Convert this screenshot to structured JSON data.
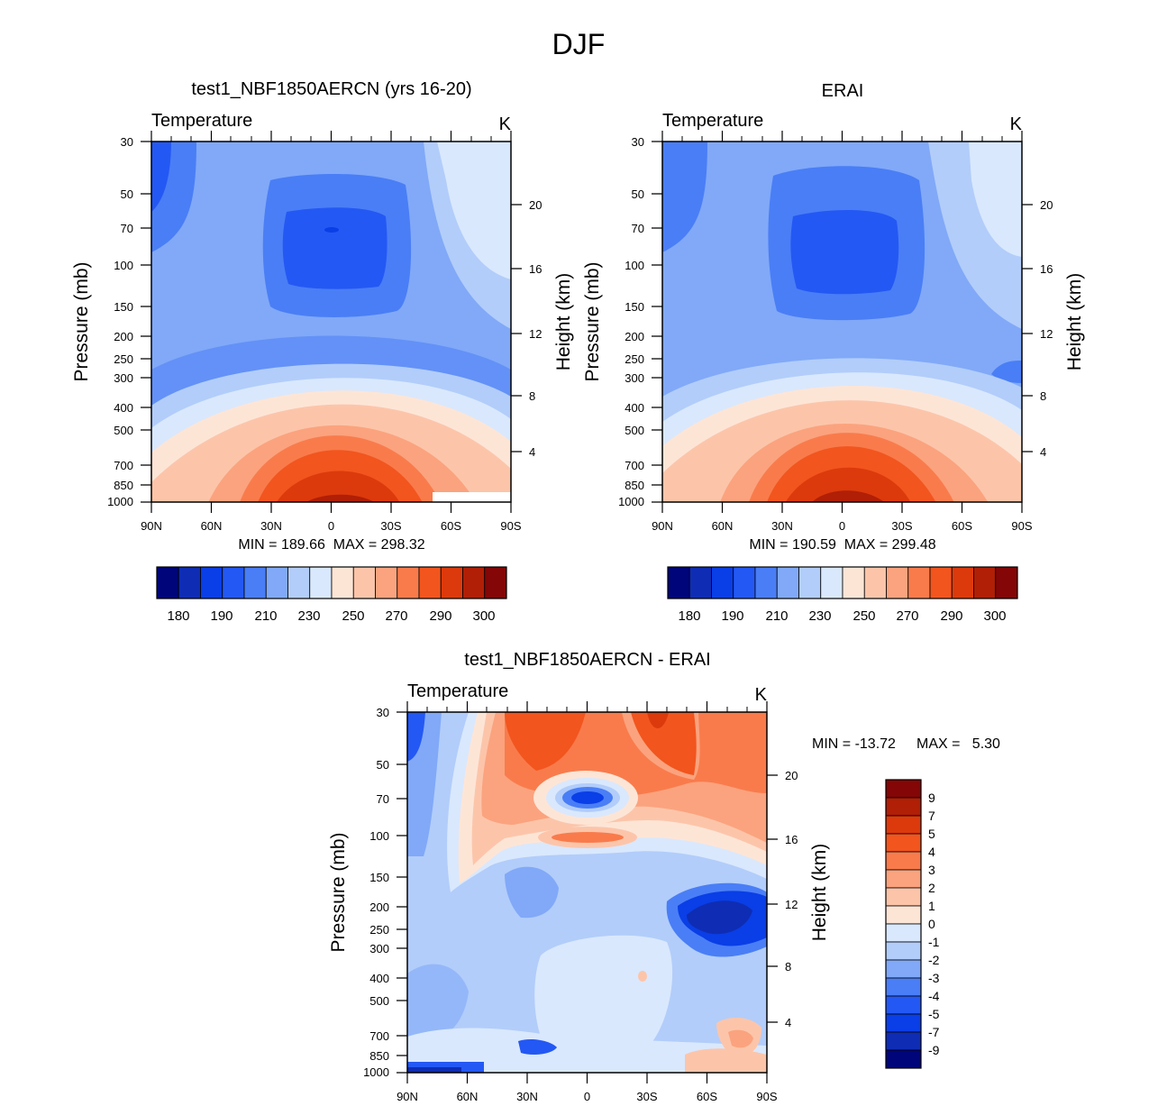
{
  "figure_title": "DJF",
  "colors": {
    "abs": [
      "#00057a",
      "#0e2db4",
      "#0a3ee6",
      "#2458f4",
      "#4a7ef6",
      "#81a9f8",
      "#b2cdfa",
      "#d9e8fd",
      "#fde5d6",
      "#fcc5aa",
      "#fba37e",
      "#f97b4c",
      "#f2551e",
      "#dc3a0c",
      "#b01f06",
      "#840606"
    ],
    "diff": [
      "#00057a",
      "#0e2db4",
      "#0a3ee6",
      "#2458f4",
      "#4a7ef6",
      "#81a9f8",
      "#b2cdfa",
      "#d9e8fd",
      "#fde5d6",
      "#fcc5aa",
      "#fba37e",
      "#f97b4c",
      "#f2551e",
      "#dc3a0c",
      "#b01f06",
      "#840606"
    ]
  },
  "chart_data": [
    {
      "type": "contour",
      "panel": "model",
      "title": "test1_NBF1850AERCN (yrs 16-20)",
      "subtitle_left": "Temperature",
      "subtitle_right": "K",
      "ylabel": "Pressure (mb)",
      "ylabel_right": "Height (km)",
      "x_ticks": [
        "90N",
        "60N",
        "30N",
        "0",
        "30S",
        "60S",
        "90S"
      ],
      "y_ticks": [
        "30",
        "50",
        "70",
        "100",
        "150",
        "200",
        "250",
        "300",
        "400",
        "500",
        "700",
        "850",
        "1000"
      ],
      "height_ticks": [
        "4",
        "8",
        "12",
        "16",
        "20"
      ],
      "stats": "MIN = 189.66  MAX = 298.32",
      "colorbar_labels": [
        "180",
        "190",
        "210",
        "230",
        "250",
        "270",
        "290",
        "300"
      ],
      "min": 189.66,
      "max": 298.32
    },
    {
      "type": "contour",
      "panel": "obs",
      "title": "ERAI",
      "subtitle_left": "Temperature",
      "subtitle_right": "K",
      "ylabel": "Pressure (mb)",
      "ylabel_right": "Height (km)",
      "x_ticks": [
        "90N",
        "60N",
        "30N",
        "0",
        "30S",
        "60S",
        "90S"
      ],
      "y_ticks": [
        "30",
        "50",
        "70",
        "100",
        "150",
        "200",
        "250",
        "300",
        "400",
        "500",
        "700",
        "850",
        "1000"
      ],
      "height_ticks": [
        "4",
        "8",
        "12",
        "16",
        "20"
      ],
      "stats": "MIN = 190.59  MAX = 299.48",
      "colorbar_labels": [
        "180",
        "190",
        "210",
        "230",
        "250",
        "270",
        "290",
        "300"
      ],
      "min": 190.59,
      "max": 299.48
    },
    {
      "type": "contour",
      "panel": "diff",
      "title": "test1_NBF1850AERCN - ERAI",
      "subtitle_left": "Temperature",
      "subtitle_right": "K",
      "ylabel": "Pressure (mb)",
      "ylabel_right": "Height (km)",
      "x_ticks": [
        "90N",
        "60N",
        "30N",
        "0",
        "30S",
        "60S",
        "90S"
      ],
      "y_ticks": [
        "30",
        "50",
        "70",
        "100",
        "150",
        "200",
        "250",
        "300",
        "400",
        "500",
        "700",
        "850",
        "1000"
      ],
      "height_ticks": [
        "4",
        "8",
        "12",
        "16",
        "20"
      ],
      "stats_min": "MIN = -13.72",
      "stats_max": "MAX =   5.30",
      "colorbar_labels": [
        "9",
        "7",
        "5",
        "4",
        "3",
        "2",
        "1",
        "0",
        "-1",
        "-2",
        "-3",
        "-4",
        "-5",
        "-7",
        "-9"
      ],
      "min": -13.72,
      "max": 5.3
    }
  ]
}
